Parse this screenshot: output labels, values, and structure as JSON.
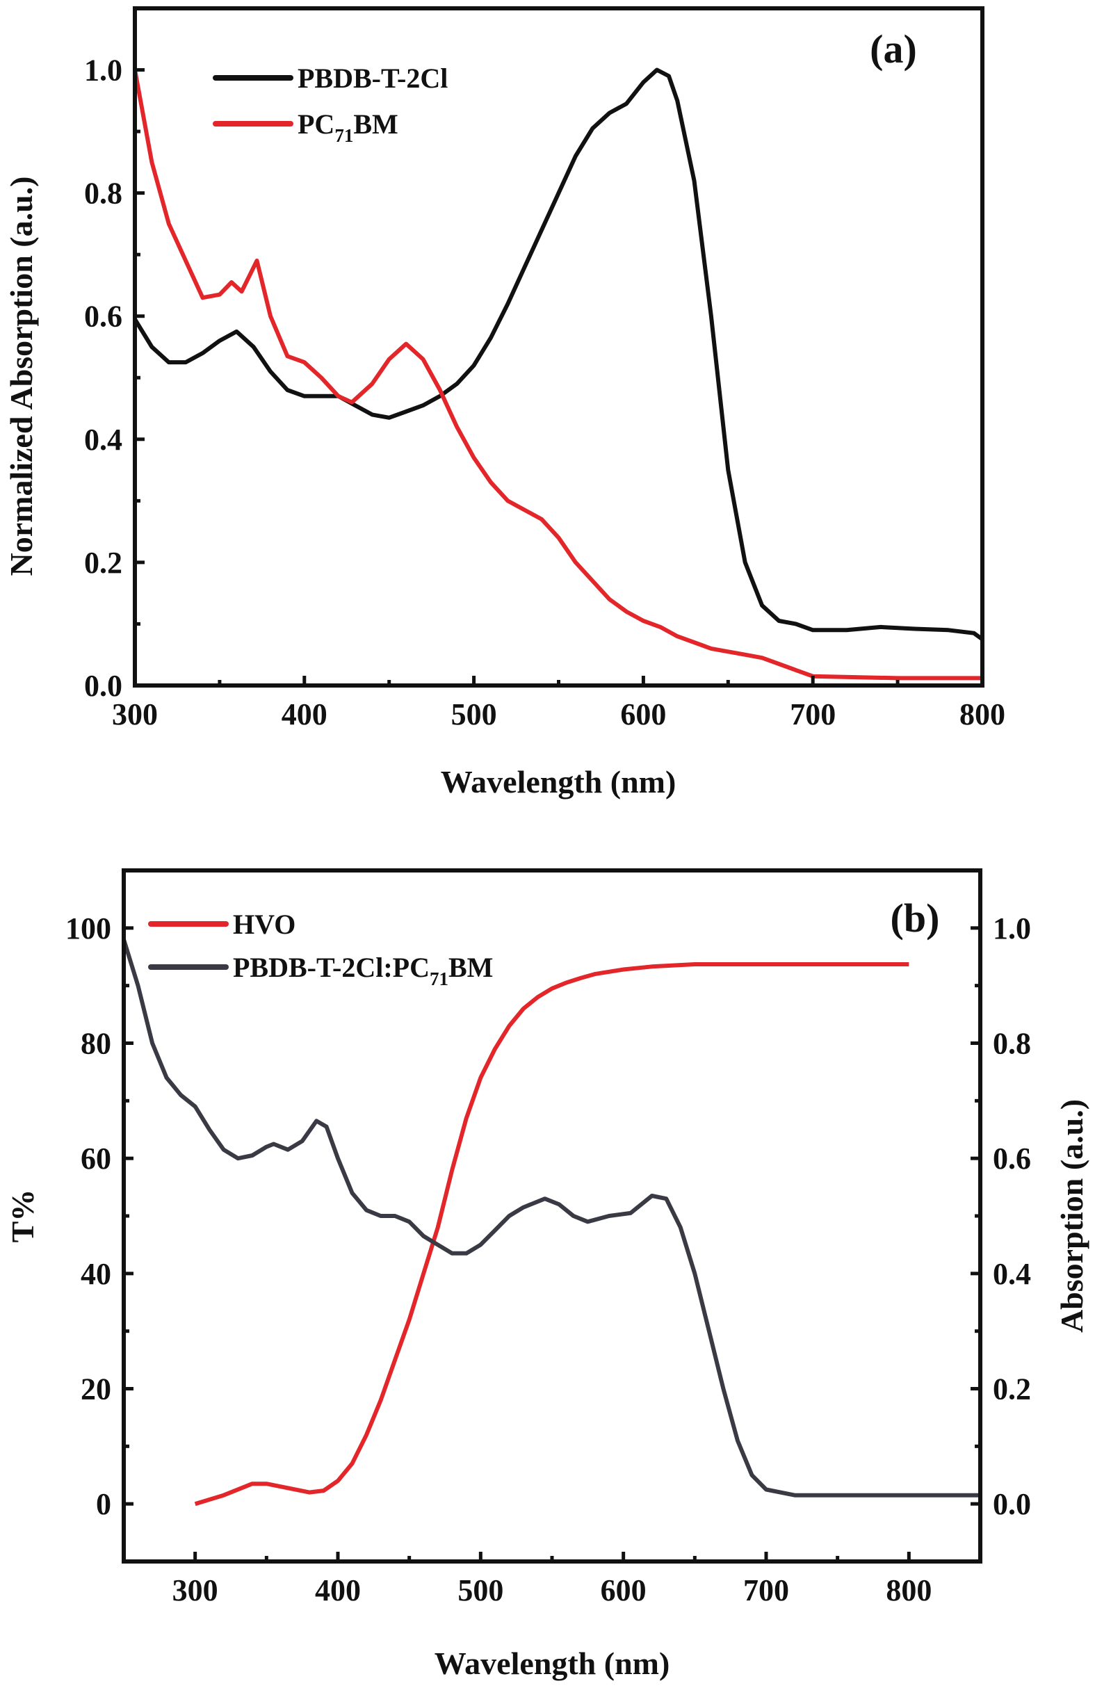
{
  "chart_data": [
    {
      "type": "line",
      "panel_label": "(a)",
      "xlabel": "Wavelength (nm)",
      "ylabel": "Normalized Absorption (a.u.)",
      "xlim": [
        300,
        800
      ],
      "ylim": [
        0,
        1.1
      ],
      "xticks": [
        "300",
        "400",
        "500",
        "600",
        "700",
        "800"
      ],
      "yticks": [
        "0.0",
        "0.2",
        "0.4",
        "0.6",
        "0.8",
        "1.0"
      ],
      "grid": false,
      "legend_position": "top-left",
      "series": [
        {
          "name": "PBDB-T-2Cl",
          "name_main": "PBDB-T-2Cl",
          "name_sub": "",
          "name_tail": "",
          "color": "#111111",
          "x": [
            300,
            310,
            320,
            330,
            340,
            350,
            360,
            370,
            380,
            390,
            400,
            410,
            420,
            430,
            440,
            450,
            460,
            470,
            480,
            490,
            500,
            510,
            520,
            530,
            540,
            550,
            560,
            570,
            580,
            590,
            600,
            608,
            615,
            620,
            630,
            640,
            650,
            660,
            670,
            680,
            690,
            700,
            720,
            740,
            760,
            780,
            795,
            800
          ],
          "y": [
            0.595,
            0.55,
            0.525,
            0.525,
            0.54,
            0.56,
            0.575,
            0.55,
            0.51,
            0.48,
            0.47,
            0.47,
            0.47,
            0.455,
            0.44,
            0.435,
            0.445,
            0.455,
            0.47,
            0.49,
            0.52,
            0.565,
            0.62,
            0.68,
            0.74,
            0.8,
            0.86,
            0.905,
            0.93,
            0.945,
            0.98,
            1.0,
            0.99,
            0.95,
            0.82,
            0.6,
            0.35,
            0.2,
            0.13,
            0.105,
            0.1,
            0.09,
            0.09,
            0.095,
            0.092,
            0.09,
            0.085,
            0.075
          ]
        },
        {
          "name": "PC71BM",
          "name_main": "PC",
          "name_sub": "71",
          "name_tail": "BM",
          "color": "#e3262a",
          "x": [
            300,
            310,
            320,
            330,
            340,
            350,
            357,
            363,
            372,
            380,
            390,
            400,
            410,
            420,
            428,
            440,
            450,
            460,
            470,
            480,
            490,
            500,
            510,
            520,
            530,
            540,
            550,
            560,
            570,
            580,
            590,
            600,
            610,
            620,
            630,
            640,
            650,
            660,
            670,
            680,
            690,
            700,
            750,
            800
          ],
          "y": [
            1.0,
            0.85,
            0.75,
            0.69,
            0.63,
            0.635,
            0.655,
            0.64,
            0.69,
            0.6,
            0.535,
            0.525,
            0.5,
            0.47,
            0.46,
            0.49,
            0.53,
            0.555,
            0.53,
            0.48,
            0.42,
            0.37,
            0.33,
            0.3,
            0.285,
            0.27,
            0.24,
            0.2,
            0.17,
            0.14,
            0.12,
            0.105,
            0.095,
            0.08,
            0.07,
            0.06,
            0.055,
            0.05,
            0.045,
            0.035,
            0.025,
            0.015,
            0.012,
            0.012
          ]
        }
      ]
    },
    {
      "type": "line",
      "panel_label": "(b)",
      "xlabel": "Wavelength (nm)",
      "ylabel": "T%",
      "y2label": "Absorption (a.u.)",
      "xlim": [
        250,
        850
      ],
      "ylim": [
        -10,
        110
      ],
      "y2lim": [
        -0.1,
        1.1
      ],
      "xticks": [
        "300",
        "400",
        "500",
        "600",
        "700",
        "800"
      ],
      "yticks": [
        "0",
        "20",
        "40",
        "60",
        "80",
        "100"
      ],
      "y2ticks": [
        "0.0",
        "0.2",
        "0.4",
        "0.6",
        "0.8",
        "1.0"
      ],
      "grid": false,
      "legend_position": "top-left",
      "series": [
        {
          "name": "HVO",
          "name_main": "HVO",
          "name_sub": "",
          "name_tail": "",
          "axis": "left",
          "color": "#e3262a",
          "x": [
            300,
            320,
            340,
            350,
            360,
            380,
            390,
            400,
            410,
            420,
            430,
            440,
            450,
            460,
            470,
            480,
            490,
            500,
            510,
            520,
            530,
            540,
            550,
            560,
            570,
            580,
            600,
            620,
            650,
            700,
            800
          ],
          "y": [
            0,
            1.5,
            3.5,
            3.5,
            3,
            2,
            2.3,
            4,
            7,
            12,
            18,
            25,
            32,
            40,
            48,
            58,
            67,
            74,
            79,
            83,
            86,
            88,
            89.5,
            90.5,
            91.3,
            92,
            92.8,
            93.3,
            93.7,
            93.7,
            93.7
          ]
        },
        {
          "name": "PBDB-T-2Cl:PC71BM",
          "name_main": "PBDB-T-2Cl:PC",
          "name_sub": "71",
          "name_tail": "BM",
          "axis": "right",
          "color": "#3a3a44",
          "x": [
            250,
            260,
            270,
            280,
            290,
            300,
            310,
            320,
            330,
            340,
            350,
            355,
            365,
            375,
            385,
            392,
            400,
            410,
            420,
            430,
            440,
            450,
            460,
            470,
            480,
            490,
            500,
            510,
            520,
            530,
            545,
            555,
            565,
            575,
            590,
            605,
            620,
            630,
            640,
            650,
            660,
            670,
            680,
            690,
            700,
            720,
            750,
            800,
            850
          ],
          "y": [
            0.98,
            0.9,
            0.8,
            0.74,
            0.71,
            0.69,
            0.65,
            0.615,
            0.6,
            0.605,
            0.62,
            0.625,
            0.615,
            0.63,
            0.665,
            0.655,
            0.6,
            0.54,
            0.51,
            0.5,
            0.5,
            0.49,
            0.465,
            0.45,
            0.435,
            0.435,
            0.45,
            0.475,
            0.5,
            0.515,
            0.53,
            0.52,
            0.5,
            0.49,
            0.5,
            0.505,
            0.535,
            0.53,
            0.48,
            0.4,
            0.3,
            0.2,
            0.11,
            0.05,
            0.025,
            0.015,
            0.015,
            0.015,
            0.015
          ]
        }
      ]
    }
  ]
}
